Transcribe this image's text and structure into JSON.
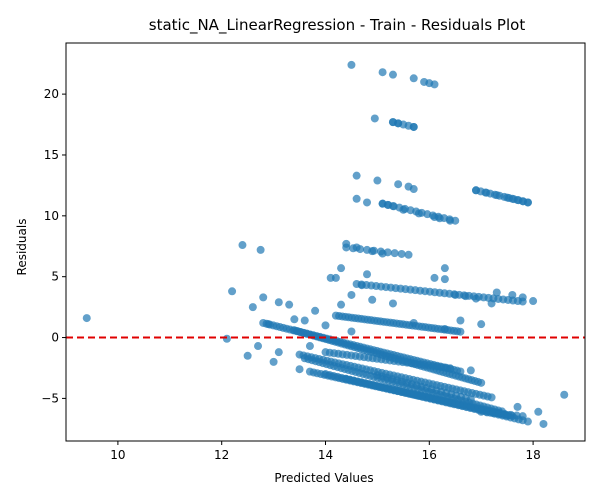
{
  "chart_data": {
    "type": "scatter",
    "title": "static_NA_LinearRegression - Train - Residuals Plot",
    "xlabel": "Predicted Values",
    "ylabel": "Residuals",
    "xlim": [
      9.0,
      19.0
    ],
    "ylim": [
      -8.5,
      24.2
    ],
    "x_ticks": [
      10,
      12,
      14,
      16,
      18
    ],
    "y_ticks": [
      -5,
      0,
      5,
      10,
      15,
      20
    ],
    "reference_line": {
      "y": 0,
      "color": "#e00000",
      "style": "dashed"
    },
    "point_color": "#1f77b4",
    "point_alpha": 0.7,
    "grid": false,
    "series": [
      {
        "points": [
          [
            9.4,
            1.6
          ],
          [
            12.1,
            -0.1
          ],
          [
            12.2,
            3.8
          ],
          [
            12.4,
            7.6
          ],
          [
            12.5,
            -1.5
          ],
          [
            12.6,
            2.5
          ],
          [
            12.7,
            -0.7
          ],
          [
            12.75,
            7.2
          ],
          [
            12.8,
            3.3
          ],
          [
            12.9,
            1.1
          ],
          [
            13.0,
            -2.0
          ],
          [
            13.1,
            -1.2
          ],
          [
            13.1,
            2.9
          ],
          [
            13.3,
            2.7
          ],
          [
            13.4,
            1.5
          ],
          [
            13.5,
            -2.6
          ],
          [
            13.6,
            1.4
          ],
          [
            13.7,
            -0.7
          ],
          [
            13.8,
            2.2
          ],
          [
            14.0,
            1.0
          ],
          [
            14.1,
            4.9
          ],
          [
            14.2,
            4.9
          ],
          [
            14.3,
            5.7
          ],
          [
            14.3,
            2.7
          ],
          [
            14.4,
            7.7
          ],
          [
            14.5,
            22.4
          ],
          [
            14.5,
            0.5
          ],
          [
            14.5,
            3.5
          ],
          [
            14.6,
            11.4
          ],
          [
            14.6,
            13.3
          ],
          [
            14.6,
            7.4
          ],
          [
            14.7,
            4.3
          ],
          [
            14.8,
            5.2
          ],
          [
            14.8,
            11.1
          ],
          [
            14.9,
            7.1
          ],
          [
            14.9,
            3.1
          ],
          [
            14.95,
            18.0
          ],
          [
            15.0,
            12.9
          ],
          [
            15.1,
            21.8
          ],
          [
            15.1,
            6.9
          ],
          [
            15.1,
            11.0
          ],
          [
            15.2,
            10.9
          ],
          [
            15.3,
            21.6
          ],
          [
            15.3,
            17.7
          ],
          [
            15.3,
            10.8
          ],
          [
            15.3,
            2.8
          ],
          [
            15.4,
            12.6
          ],
          [
            15.4,
            17.6
          ],
          [
            15.5,
            10.5
          ],
          [
            15.6,
            12.4
          ],
          [
            15.7,
            21.3
          ],
          [
            15.7,
            17.3
          ],
          [
            15.7,
            12.2
          ],
          [
            15.7,
            1.2
          ],
          [
            15.8,
            10.2
          ],
          [
            15.9,
            21.0
          ],
          [
            16.0,
            20.9
          ],
          [
            16.1,
            20.8
          ],
          [
            16.1,
            9.9
          ],
          [
            16.1,
            4.9
          ],
          [
            16.2,
            9.8
          ],
          [
            16.3,
            5.7
          ],
          [
            16.3,
            4.8
          ],
          [
            16.3,
            0.7
          ],
          [
            16.4,
            9.6
          ],
          [
            16.5,
            3.5
          ],
          [
            16.6,
            1.4
          ],
          [
            16.7,
            3.4
          ],
          [
            16.8,
            -2.7
          ],
          [
            16.9,
            12.1
          ],
          [
            16.9,
            3.2
          ],
          [
            17.0,
            1.1
          ],
          [
            17.1,
            11.9
          ],
          [
            17.2,
            2.8
          ],
          [
            17.3,
            11.7
          ],
          [
            17.3,
            3.7
          ],
          [
            17.5,
            11.5
          ],
          [
            17.6,
            11.4
          ],
          [
            17.6,
            3.5
          ],
          [
            17.7,
            -5.7
          ],
          [
            17.7,
            11.3
          ],
          [
            17.8,
            11.2
          ],
          [
            17.8,
            3.3
          ],
          [
            17.9,
            11.1
          ],
          [
            17.9,
            -6.9
          ],
          [
            18.0,
            3.0
          ],
          [
            18.1,
            -6.1
          ],
          [
            18.2,
            -7.1
          ],
          [
            18.6,
            -4.7
          ]
        ],
        "bands": [
          {
            "x_start": 12.8,
            "x_end": 16.6,
            "y_at_start": 1.2,
            "slope": -1.05,
            "count": 60
          },
          {
            "x_start": 13.4,
            "x_end": 17.0,
            "y_at_start": 0.6,
            "slope": -1.2,
            "count": 60
          },
          {
            "x_start": 13.5,
            "x_end": 17.2,
            "y_at_start": -1.4,
            "slope": -0.95,
            "count": 50
          },
          {
            "x_start": 13.6,
            "x_end": 17.4,
            "y_at_start": -1.7,
            "slope": -1.15,
            "count": 55
          },
          {
            "x_start": 13.7,
            "x_end": 17.5,
            "y_at_start": -2.8,
            "slope": -0.95,
            "count": 55
          },
          {
            "x_start": 14.0,
            "x_end": 17.8,
            "y_at_start": -3.0,
            "slope": -1.0,
            "count": 50
          },
          {
            "x_start": 14.4,
            "x_end": 17.6,
            "y_at_start": -3.4,
            "slope": -0.95,
            "count": 45
          },
          {
            "x_start": 14.6,
            "x_end": 17.8,
            "y_at_start": 4.4,
            "slope": -0.45,
            "count": 35
          },
          {
            "x_start": 14.2,
            "x_end": 16.6,
            "y_at_start": 1.8,
            "slope": -0.55,
            "count": 40
          },
          {
            "x_start": 14.4,
            "x_end": 15.6,
            "y_at_start": 7.4,
            "slope": -0.5,
            "count": 10
          },
          {
            "x_start": 15.1,
            "x_end": 16.5,
            "y_at_start": 11.0,
            "slope": -1.0,
            "count": 14
          },
          {
            "x_start": 15.3,
            "x_end": 15.7,
            "y_at_start": 17.7,
            "slope": -1.0,
            "count": 5
          },
          {
            "x_start": 16.9,
            "x_end": 17.9,
            "y_at_start": 12.1,
            "slope": -1.0,
            "count": 12
          },
          {
            "x_start": 17.0,
            "x_end": 17.8,
            "y_at_start": -6.1,
            "slope": -0.45,
            "count": 8
          },
          {
            "x_start": 14.0,
            "x_end": 16.4,
            "y_at_start": -1.2,
            "slope": -0.55,
            "count": 30
          },
          {
            "x_start": 15.0,
            "x_end": 16.8,
            "y_at_start": -3.1,
            "slope": -1.1,
            "count": 20
          }
        ]
      }
    ]
  }
}
